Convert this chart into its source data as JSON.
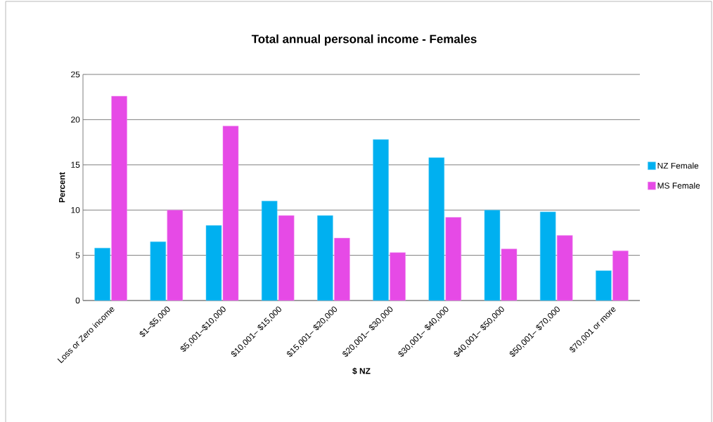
{
  "chart_data": {
    "type": "bar",
    "title": "Total annual personal income - Females",
    "xlabel": "$ NZ",
    "ylabel": "Percent",
    "categories": [
      "Loss or Zero income",
      "$1–$5,000",
      "$5,001–$10,000",
      "$10,001– $15,000",
      "$15,001– $20,000",
      "$20,001– $30,000",
      "$30,001– $40,000",
      "$40,001– $50,000",
      "$50,001– $70,000",
      "$70,001 or more"
    ],
    "series": [
      {
        "name": "NZ Female",
        "color": "#00b0f0",
        "values": [
          5.8,
          6.5,
          8.3,
          11.0,
          9.4,
          17.8,
          15.8,
          10.0,
          9.8,
          3.3
        ]
      },
      {
        "name": "MS Female",
        "color": "#e64ae6",
        "values": [
          22.6,
          10.0,
          19.3,
          9.4,
          6.9,
          5.3,
          9.2,
          5.7,
          7.2,
          5.5
        ]
      }
    ],
    "ylim": [
      0,
      25
    ],
    "yticks": [
      0,
      5,
      10,
      15,
      20,
      25
    ],
    "grid": "y",
    "legend": "right"
  }
}
